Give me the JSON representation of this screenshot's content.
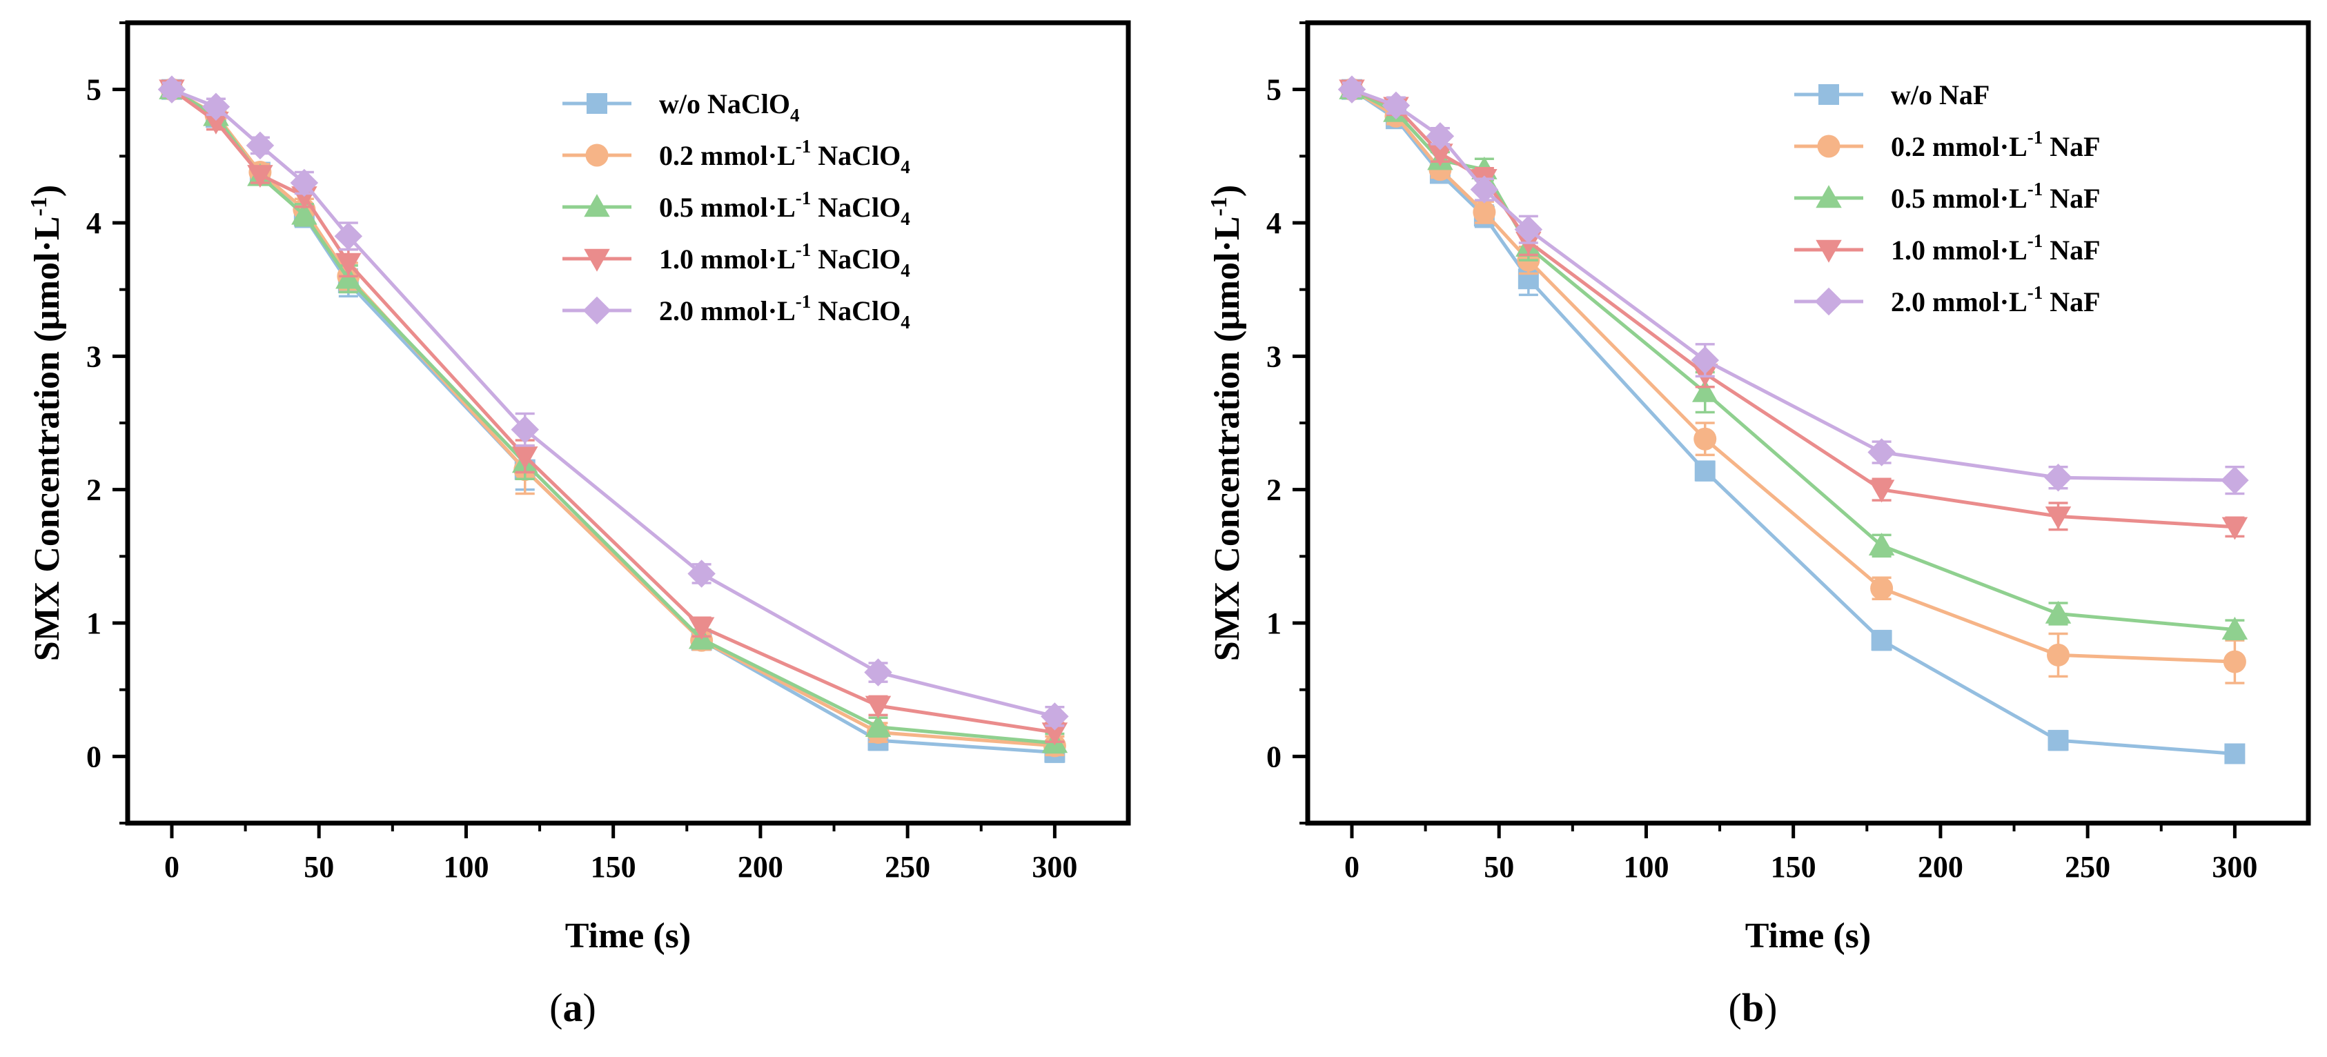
{
  "colors": {
    "s1": "#94bee0",
    "s2": "#f6b487",
    "s3": "#8fd08f",
    "s4": "#ea8c8c",
    "s5": "#c9abe1",
    "axis": "#000000"
  },
  "chart_data": [
    {
      "type": "line",
      "panel_label": {
        "open": "(",
        "letter": "a",
        "close": ")"
      },
      "xlabel": "Time (s)",
      "ylabel": "SMX Concentration (μmol·L",
      "ylabel_sup": "-1",
      "ylabel_close": ")",
      "xlim": [
        -15,
        325
      ],
      "ylim": [
        -0.5,
        5.5
      ],
      "xticks": [
        0,
        50,
        100,
        150,
        200,
        250,
        300
      ],
      "yticks": [
        0,
        1,
        2,
        3,
        4,
        5
      ],
      "x": [
        0,
        15,
        30,
        45,
        60,
        120,
        180,
        240,
        300
      ],
      "legend_position": "top-right",
      "series": [
        {
          "name": "w/o NaClO4",
          "label_parts": [
            {
              "t": "w/o NaClO"
            },
            {
              "t": "4",
              "s": "sub"
            }
          ],
          "color": "s1",
          "marker": "square",
          "values": [
            5.0,
            4.79,
            4.38,
            4.05,
            3.55,
            2.15,
            0.87,
            0.12,
            0.03
          ],
          "errors": [
            0.05,
            0.06,
            0.06,
            0.08,
            0.1,
            0.15,
            0.07,
            0.07,
            0.07
          ]
        },
        {
          "name": "0.2 mmol·L-1 NaClO4",
          "label_parts": [
            {
              "t": "0.2 mmol·L"
            },
            {
              "t": "-1",
              "s": "sup"
            },
            {
              "t": "  NaClO"
            },
            {
              "t": "4",
              "s": "sub"
            }
          ],
          "color": "s2",
          "marker": "circle",
          "values": [
            5.0,
            4.81,
            4.38,
            4.1,
            3.6,
            2.15,
            0.87,
            0.18,
            0.08
          ],
          "errors": [
            0.05,
            0.06,
            0.06,
            0.08,
            0.1,
            0.18,
            0.07,
            0.07,
            0.07
          ]
        },
        {
          "name": "0.5 mmol·L-1 NaClO4",
          "label_parts": [
            {
              "t": "0.5 mmol·L"
            },
            {
              "t": "-1",
              "s": "sup"
            },
            {
              "t": "  NaClO"
            },
            {
              "t": "4",
              "s": "sub"
            }
          ],
          "color": "s3",
          "marker": "triangle-up",
          "values": [
            5.0,
            4.8,
            4.35,
            4.06,
            3.58,
            2.2,
            0.88,
            0.22,
            0.1
          ],
          "errors": [
            0.05,
            0.06,
            0.06,
            0.08,
            0.1,
            0.12,
            0.07,
            0.07,
            0.07
          ]
        },
        {
          "name": "1.0 mmol·L-1 NaClO4",
          "label_parts": [
            {
              "t": "1.0 mmol·L"
            },
            {
              "t": "-1",
              "s": "sup"
            },
            {
              "t": "  NaClO"
            },
            {
              "t": "4",
              "s": "sub"
            }
          ],
          "color": "s4",
          "marker": "triangle-down",
          "values": [
            5.0,
            4.76,
            4.36,
            4.2,
            3.7,
            2.25,
            0.97,
            0.38,
            0.18
          ],
          "errors": [
            0.05,
            0.06,
            0.06,
            0.08,
            0.1,
            0.12,
            0.07,
            0.07,
            0.07
          ]
        },
        {
          "name": "2.0 mmol·L-1 NaClO4",
          "label_parts": [
            {
              "t": "2.0 mmol·L"
            },
            {
              "t": "-1",
              "s": "sup"
            },
            {
              "t": "  NaClO"
            },
            {
              "t": "4",
              "s": "sub"
            }
          ],
          "color": "s5",
          "marker": "diamond",
          "values": [
            5.0,
            4.87,
            4.58,
            4.3,
            3.9,
            2.45,
            1.37,
            0.63,
            0.3
          ],
          "errors": [
            0.05,
            0.06,
            0.06,
            0.08,
            0.1,
            0.12,
            0.07,
            0.07,
            0.07
          ]
        }
      ]
    },
    {
      "type": "line",
      "panel_label": {
        "open": "(",
        "letter": "b",
        "close": ")"
      },
      "xlabel": "Time (s)",
      "ylabel": "SMX Concentration (μmol·L",
      "ylabel_sup": "-1",
      "ylabel_close": ")",
      "xlim": [
        -15,
        325
      ],
      "ylim": [
        -0.5,
        5.5
      ],
      "xticks": [
        0,
        50,
        100,
        150,
        200,
        250,
        300
      ],
      "yticks": [
        0,
        1,
        2,
        3,
        4,
        5
      ],
      "x": [
        0,
        15,
        30,
        45,
        60,
        120,
        180,
        240,
        300
      ],
      "legend_position": "top-right",
      "series": [
        {
          "name": "w/o NaF",
          "label_parts": [
            {
              "t": "w/o NaF"
            }
          ],
          "color": "s1",
          "marker": "square",
          "values": [
            5.0,
            4.78,
            4.37,
            4.05,
            3.58,
            2.14,
            0.87,
            0.12,
            0.02
          ],
          "errors": [
            0.05,
            0.06,
            0.06,
            0.08,
            0.12,
            0.07,
            0.07,
            0.07,
            0.05
          ]
        },
        {
          "name": "0.2 mmol·L-1 NaF",
          "label_parts": [
            {
              "t": "0.2 mmol·L"
            },
            {
              "t": "-1",
              "s": "sup"
            },
            {
              "t": "  NaF"
            }
          ],
          "color": "s2",
          "marker": "circle",
          "values": [
            5.0,
            4.8,
            4.4,
            4.08,
            3.72,
            2.38,
            1.26,
            0.76,
            0.71
          ],
          "errors": [
            0.05,
            0.06,
            0.06,
            0.08,
            0.1,
            0.12,
            0.08,
            0.16,
            0.16
          ]
        },
        {
          "name": "0.5 mmol·L-1 NaF",
          "label_parts": [
            {
              "t": "0.5 mmol·L"
            },
            {
              "t": "-1",
              "s": "sup"
            },
            {
              "t": "  NaF"
            }
          ],
          "color": "s3",
          "marker": "triangle-up",
          "values": [
            5.0,
            4.83,
            4.47,
            4.4,
            3.82,
            2.73,
            1.58,
            1.07,
            0.95
          ],
          "errors": [
            0.05,
            0.06,
            0.06,
            0.08,
            0.1,
            0.15,
            0.08,
            0.08,
            0.07
          ]
        },
        {
          "name": "1.0 mmol·L-1 NaF",
          "label_parts": [
            {
              "t": "1.0 mmol·L"
            },
            {
              "t": "-1",
              "s": "sup"
            },
            {
              "t": "  NaF"
            }
          ],
          "color": "s4",
          "marker": "triangle-down",
          "values": [
            5.0,
            4.87,
            4.52,
            4.33,
            3.86,
            2.87,
            2.0,
            1.8,
            1.72
          ],
          "errors": [
            0.05,
            0.06,
            0.06,
            0.08,
            0.1,
            0.1,
            0.08,
            0.1,
            0.07
          ]
        },
        {
          "name": "2.0 mmol·L-1 NaF",
          "label_parts": [
            {
              "t": "2.0 mmol·L"
            },
            {
              "t": "-1",
              "s": "sup"
            },
            {
              "t": "  NaF"
            }
          ],
          "color": "s5",
          "marker": "diamond",
          "values": [
            5.0,
            4.88,
            4.65,
            4.25,
            3.95,
            2.97,
            2.28,
            2.09,
            2.07
          ],
          "errors": [
            0.05,
            0.06,
            0.06,
            0.08,
            0.1,
            0.12,
            0.08,
            0.08,
            0.1
          ]
        }
      ]
    }
  ]
}
